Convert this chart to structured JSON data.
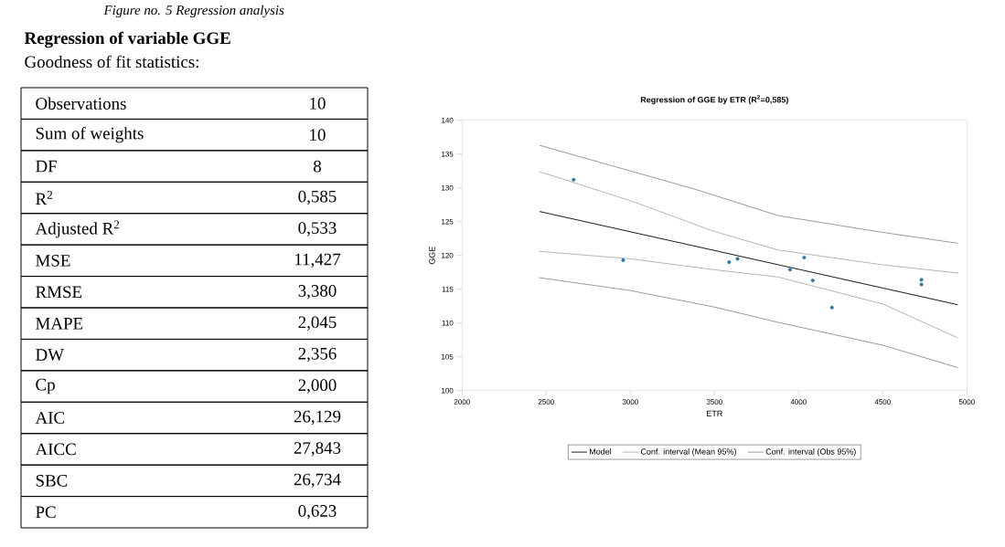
{
  "chart_data": [
    {
      "type": "other",
      "title": "Regression of variable GGE",
      "subtitle": "Goodness of fit statistics:",
      "annotations": [
        "Figure no. 5 Regression analysis"
      ],
      "categories": [
        "Observations",
        "Sum of weights",
        "DF",
        "R$^{2}$",
        "Adjusted R$^{2}$",
        "MSE",
        "RMSE",
        "MAPE",
        "DW",
        "Cp",
        "AIC",
        "AICC",
        "SBC",
        "PC"
      ],
      "value_labels": [
        "10",
        "10",
        "8",
        "0,585",
        "0,533",
        "11,427",
        "3,380",
        "2,045",
        "2,356",
        "2,000",
        "26,129",
        "27,843",
        "26,734",
        "0,623"
      ]
    },
    {
      "type": "scatter",
      "title": "Regression of GGE by ETR (R$^{2}$=0,585)",
      "xlabel": "ETR",
      "ylabel": "GGE",
      "xlim": [
        2000,
        5000
      ],
      "ylim": [
        100,
        140
      ],
      "xticks": [
        2000,
        2500,
        3000,
        3500,
        4000,
        4500,
        5000
      ],
      "yticks": [
        100,
        105,
        110,
        115,
        120,
        125,
        130,
        135,
        140
      ],
      "legend": "bottom",
      "x": [
        2663,
        2957,
        3587,
        3637,
        3949,
        4033,
        4084,
        4198,
        4730,
        4730
      ],
      "series": [
        {
          "type": "scatter",
          "color": "#2e75a0",
          "marker": "circle",
          "values": [
            131.2,
            119.3,
            119.0,
            119.5,
            117.9,
            119.7,
            116.3,
            112.3,
            116.4,
            115.7
          ]
        },
        {
          "type": "line",
          "name": "Model",
          "color": "#000000",
          "line_style": "solid",
          "marker": "none",
          "x": [
            2460,
            4946
          ],
          "values": [
            126.5,
            112.7
          ]
        },
        {
          "type": "line",
          "name": "Conf. interval (Mean 95%)",
          "color": "#999999",
          "line_style": "dotted",
          "marker": "none",
          "x": [
            2460,
            3000,
            3493,
            3878,
            4502,
            4946
          ],
          "values": [
            132.4,
            128.1,
            123.6,
            120.8,
            118.6,
            117.4
          ]
        },
        {
          "type": "line",
          "color": "#999999",
          "line_style": "dotted",
          "marker": "none",
          "x": [
            2460,
            3000,
            3493,
            3878,
            4502,
            4946
          ],
          "values": [
            120.6,
            119.5,
            117.9,
            116.8,
            112.8,
            107.8
          ]
        },
        {
          "type": "line",
          "name": "Conf. interval (Obs 95%)",
          "color": "#808080",
          "line_style": "solid",
          "marker": "none",
          "x": [
            2460,
            3000,
            3384,
            3878,
            4502,
            4946
          ],
          "values": [
            136.3,
            132.5,
            129.8,
            125.9,
            123.4,
            121.8
          ]
        },
        {
          "type": "line",
          "color": "#808080",
          "line_style": "solid",
          "marker": "none",
          "x": [
            2460,
            3000,
            3493,
            3878,
            4502,
            4946
          ],
          "values": [
            116.7,
            114.8,
            112.4,
            110.1,
            106.7,
            103.4
          ]
        }
      ]
    }
  ]
}
